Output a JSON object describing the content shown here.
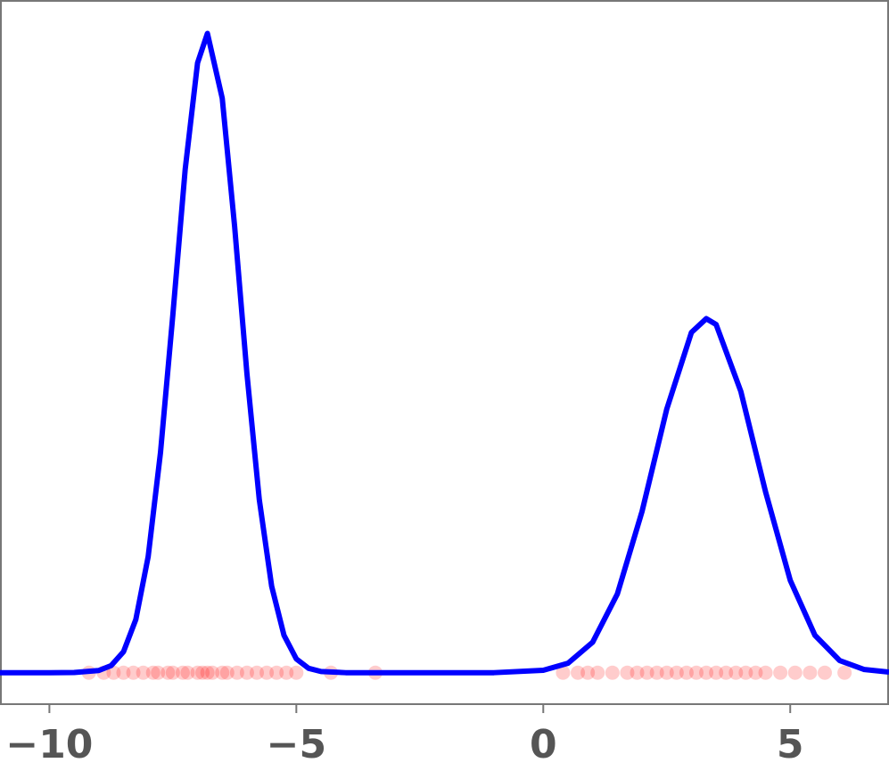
{
  "chart_data": {
    "type": "line",
    "x": [
      -11,
      -10,
      -9.5,
      -9,
      -8.75,
      -8.5,
      -8.25,
      -8,
      -7.75,
      -7.5,
      -7.25,
      -7,
      -6.8,
      -6.5,
      -6.25,
      -6,
      -5.75,
      -5.5,
      -5.25,
      -5,
      -4.75,
      -4.5,
      -4,
      -3,
      -2,
      -1,
      0,
      0.5,
      1,
      1.5,
      2,
      2.5,
      3,
      3.3,
      3.5,
      4,
      4.5,
      5,
      5.5,
      6,
      6.5,
      7
    ],
    "values": [
      0,
      0,
      0.0001,
      0.0011,
      0.0036,
      0.0106,
      0.027,
      0.059,
      0.112,
      0.182,
      0.256,
      0.31,
      0.325,
      0.292,
      0.227,
      0.152,
      0.088,
      0.044,
      0.019,
      0.007,
      0.0022,
      0.0006,
      0,
      0,
      0,
      0,
      0.0012,
      0.0048,
      0.0155,
      0.04,
      0.082,
      0.134,
      0.173,
      0.18,
      0.177,
      0.143,
      0.092,
      0.047,
      0.019,
      0.0062,
      0.0016,
      0.0003
    ],
    "color": "#0000ff",
    "rug": {
      "color": "#ff0000",
      "x": [
        -9.2,
        -8.9,
        -8.7,
        -8.5,
        -8.3,
        -8.1,
        -7.9,
        -7.8,
        -7.6,
        -7.5,
        -7.3,
        -7.2,
        -7.0,
        -6.9,
        -6.8,
        -6.7,
        -6.5,
        -6.4,
        -6.2,
        -6.0,
        -5.8,
        -5.6,
        -5.4,
        -5.2,
        -5.0,
        -4.3,
        -3.4,
        0.4,
        0.7,
        0.9,
        1.1,
        1.4,
        1.7,
        1.9,
        2.1,
        2.3,
        2.5,
        2.7,
        2.9,
        3.1,
        3.3,
        3.5,
        3.7,
        3.9,
        4.1,
        4.3,
        4.5,
        4.8,
        5.1,
        5.4,
        5.7,
        6.1
      ]
    },
    "xlim": [
      -11,
      7
    ],
    "ylim": [
      -0.016,
      0.342
    ],
    "xticks": [
      {
        "value": -10,
        "label": "−10"
      },
      {
        "value": -5,
        "label": "−5"
      },
      0,
      5
    ]
  }
}
